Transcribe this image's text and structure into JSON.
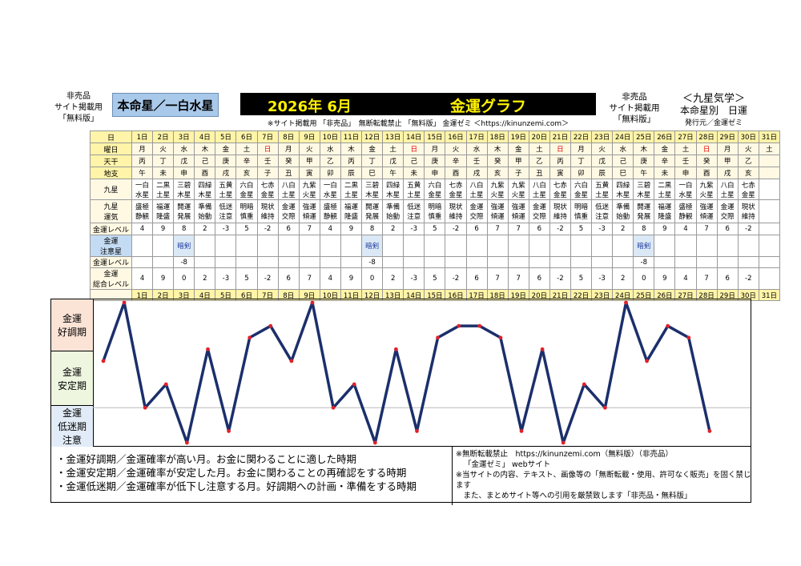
{
  "header": {
    "left_lines": [
      "非売品",
      "サイト掲載用",
      "「無料版」"
    ],
    "honmei": "本命星／一白水星",
    "month": "2026年 6月",
    "graph_title": "金運グラフ",
    "notice": "※サイト掲載用 「非売品」　無断転載禁止 「無料版」 金運ゼミ ＜https://kinunzemi.com＞",
    "right_lines": [
      "非売品",
      "サイト掲載用",
      "「無料版」"
    ],
    "right_title": "＜九星気学＞",
    "right_sub": "本命星別　日運",
    "publisher": "発行元／金運ゼミ"
  },
  "table": {
    "row_labels": {
      "day": "日",
      "weekday": "曜日",
      "tenkan": "天干",
      "chishi": "地支",
      "kyusei": "九星",
      "unki": "九星\n運気",
      "level": "金運レベル",
      "warn_star": "金運\n注意星",
      "warn_level": "金運レベル",
      "total": "金運\n総合レベル"
    },
    "days": [
      "1日",
      "2日",
      "3日",
      "4日",
      "5日",
      "6日",
      "7日",
      "8日",
      "9日",
      "10日",
      "11日",
      "12日",
      "13日",
      "14日",
      "15日",
      "16日",
      "17日",
      "18日",
      "19日",
      "20日",
      "21日",
      "22日",
      "23日",
      "24日",
      "25日",
      "26日",
      "27日",
      "28日",
      "29日",
      "30日",
      "31日"
    ],
    "weekdays": [
      "月",
      "火",
      "水",
      "木",
      "金",
      "土",
      "日",
      "月",
      "火",
      "水",
      "木",
      "金",
      "土",
      "日",
      "月",
      "火",
      "水",
      "木",
      "金",
      "土",
      "日",
      "月",
      "火",
      "水",
      "木",
      "金",
      "土",
      "日",
      "月",
      "火",
      "土"
    ],
    "sundays": [
      6,
      13,
      20,
      27
    ],
    "tenkan": [
      "丙",
      "丁",
      "戊",
      "己",
      "庚",
      "辛",
      "壬",
      "癸",
      "甲",
      "乙",
      "丙",
      "丁",
      "戊",
      "己",
      "庚",
      "辛",
      "壬",
      "癸",
      "甲",
      "乙",
      "丙",
      "丁",
      "戊",
      "己",
      "庚",
      "辛",
      "壬",
      "癸",
      "甲",
      "乙",
      ""
    ],
    "chishi": [
      "午",
      "未",
      "申",
      "酉",
      "戌",
      "亥",
      "子",
      "丑",
      "寅",
      "卯",
      "辰",
      "巳",
      "午",
      "未",
      "申",
      "酉",
      "戌",
      "亥",
      "子",
      "丑",
      "寅",
      "卯",
      "辰",
      "巳",
      "午",
      "未",
      "申",
      "酉",
      "戌",
      "亥",
      ""
    ],
    "kyusei": [
      "一白\n水星",
      "二黒\n土星",
      "三碧\n木星",
      "四緑\n木星",
      "五黄\n土星",
      "六白\n金星",
      "七赤\n金星",
      "八白\n土星",
      "九紫\n火星",
      "一白\n水星",
      "二黒\n土星",
      "三碧\n木星",
      "四緑\n木星",
      "五黄\n土星",
      "六白\n金星",
      "七赤\n金星",
      "八白\n土星",
      "九紫\n火星",
      "九紫\n火星",
      "八白\n土星",
      "七赤\n金星",
      "六白\n金星",
      "五黄\n土星",
      "四緑\n木星",
      "三碧\n木星",
      "二黒\n土星",
      "一白\n水星",
      "九紫\n火星",
      "八白\n土星",
      "七赤\n金星",
      ""
    ],
    "unki": [
      "盛極\n静観",
      "福運\n隆盛",
      "開運\n発展",
      "準備\n始動",
      "低迷\n注意",
      "明暗\n慎重",
      "現状\n維持",
      "金運\n交際",
      "強運\n傾運",
      "盛極\n静観",
      "福運\n隆盛",
      "開運\n発展",
      "準備\n始動",
      "低迷\n注意",
      "明暗\n慎重",
      "現状\n維持",
      "金運\n交際",
      "強運\n傾運",
      "強運\n傾運",
      "金運\n交際",
      "現状\n維持",
      "明暗\n慎重",
      "低迷\n注意",
      "準備\n始動",
      "開運\n発展",
      "福運\n隆盛",
      "盛極\n静観",
      "強運\n傾運",
      "金運\n交際",
      "現状\n維持",
      ""
    ],
    "level": [
      "4",
      "9",
      "8",
      "2",
      "-3",
      "5",
      "-2",
      "6",
      "7",
      "4",
      "9",
      "8",
      "2",
      "-3",
      "5",
      "-2",
      "6",
      "7",
      "7",
      "6",
      "-2",
      "5",
      "-3",
      "2",
      "8",
      "9",
      "4",
      "7",
      "6",
      "-2",
      ""
    ],
    "warn_star": [
      "",
      "",
      "暗剣",
      "",
      "",
      "",
      "",
      "",
      "",
      "",
      "",
      "暗剣",
      "",
      "",
      "",
      "",
      "",
      "",
      "",
      "",
      "",
      "",
      "",
      "",
      "暗剣",
      "",
      "",
      "",
      "",
      "",
      ""
    ],
    "warn_level": [
      "",
      "",
      "-8",
      "",
      "",
      "",
      "",
      "",
      "",
      "",
      "",
      "-8",
      "",
      "",
      "",
      "",
      "",
      "",
      "",
      "",
      "",
      "",
      "",
      "",
      "-8",
      "",
      "",
      "",
      "",
      "",
      ""
    ],
    "total": [
      "4",
      "9",
      "0",
      "2",
      "-3",
      "5",
      "-2",
      "6",
      "7",
      "4",
      "9",
      "0",
      "2",
      "-3",
      "5",
      "-2",
      "6",
      "7",
      "7",
      "6",
      "-2",
      "5",
      "-3",
      "2",
      "0",
      "9",
      "4",
      "7",
      "6",
      "-2",
      ""
    ]
  },
  "zones": {
    "good": "金運\n好調期",
    "stable": "金運\n安定期",
    "low": "金運\n低迷期\n注意"
  },
  "colors": {
    "line": "#1b2f6b",
    "point": "#e0202a",
    "good_zone": "#fbe3d6",
    "stable_zone": "#eef6e0",
    "low_zone": "#e2ecf8"
  },
  "legend": [
    "・金運好調期／金運確率が高い月。お金に関わることに適した時期",
    "・金運安定期／金運確率が安定した月。お金に関わることの再確認をする時期",
    "・金運低迷期／金運確率が低下し注意する月。好調期への計画・準備をする時期"
  ],
  "copyright": [
    "※無断転載禁止　https://kinunzemi.com（無料版）（非売品）",
    "「金運ゼミ」 webサイト",
    "※当サイトの内容、テキスト、画像等の「無断転載・使用、許可なく販売」を固く禁じます",
    "　また、まとめサイト等への引用を厳禁致します「非売品・無料版」"
  ],
  "chart_data": {
    "type": "line",
    "x": [
      "1日",
      "2日",
      "3日",
      "4日",
      "5日",
      "6日",
      "7日",
      "8日",
      "9日",
      "10日",
      "11日",
      "12日",
      "13日",
      "14日",
      "15日",
      "16日",
      "17日",
      "18日",
      "19日",
      "20日",
      "21日",
      "22日",
      "23日",
      "24日",
      "25日",
      "26日",
      "27日",
      "28日",
      "29日",
      "30日"
    ],
    "values": [
      4,
      9,
      0,
      2,
      -3,
      5,
      -2,
      6,
      7,
      4,
      9,
      0,
      2,
      -3,
      5,
      -2,
      6,
      7,
      7,
      6,
      -2,
      5,
      -3,
      2,
      0,
      9,
      4,
      7,
      6,
      -2
    ],
    "ylim": [
      -3,
      9
    ],
    "title": "金運グラフ",
    "xlabel": "",
    "ylabel": "",
    "grid": false
  }
}
